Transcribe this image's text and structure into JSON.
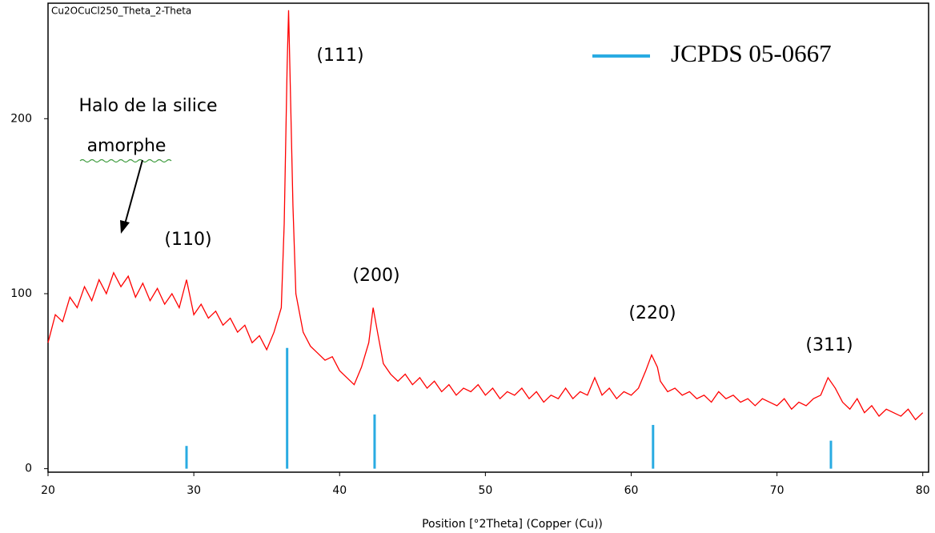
{
  "chart_data": {
    "type": "line",
    "title": "Cu2OCuCl250_Theta_2-Theta",
    "x_label": "Position [°2Theta] (Copper (Cu))",
    "xlim": [
      20,
      80.4
    ],
    "ylim": [
      -2,
      266
    ],
    "xticks": [
      20,
      30,
      40,
      50,
      60,
      70,
      80
    ],
    "yticks": [
      0,
      100,
      200
    ],
    "grid": false,
    "legend": "top-right",
    "annotations": [
      "(111)",
      "(110)",
      "(200)",
      "(220)",
      "(311)"
    ],
    "halo_label": [
      "Halo de la silice",
      "amorphe"
    ],
    "series": [
      {
        "color": "#ff0000",
        "style": "line",
        "x": [
          20,
          20.5,
          21,
          21.5,
          22,
          22.5,
          23,
          23.5,
          24,
          24.5,
          25,
          25.5,
          26,
          26.5,
          27,
          27.5,
          28,
          28.5,
          29,
          29.5,
          30,
          30.5,
          31,
          31.5,
          32,
          32.5,
          33,
          33.5,
          34,
          34.5,
          35,
          35.5,
          36,
          36.2,
          36.4,
          36.5,
          36.6,
          36.8,
          37,
          37.5,
          38,
          38.5,
          39,
          39.5,
          40,
          40.5,
          41,
          41.5,
          42,
          42.3,
          42.6,
          43,
          43.5,
          44,
          44.5,
          45,
          45.5,
          46,
          46.5,
          47,
          47.5,
          48,
          48.5,
          49,
          49.5,
          50,
          50.5,
          51,
          51.5,
          52,
          52.5,
          53,
          53.5,
          54,
          54.5,
          55,
          55.5,
          56,
          56.5,
          57,
          57.5,
          58,
          58.5,
          59,
          59.5,
          60,
          60.5,
          61,
          61.4,
          61.8,
          62,
          62.5,
          63,
          63.5,
          64,
          64.5,
          65,
          65.5,
          66,
          66.5,
          67,
          67.5,
          68,
          68.5,
          69,
          69.5,
          70,
          70.5,
          71,
          71.5,
          72,
          72.5,
          73,
          73.5,
          74,
          74.5,
          75,
          75.5,
          76,
          76.5,
          77,
          77.5,
          78,
          78.5,
          79,
          79.5,
          80
        ],
        "values": [
          72,
          88,
          84,
          98,
          92,
          104,
          96,
          108,
          100,
          112,
          104,
          110,
          98,
          106,
          96,
          103,
          94,
          100,
          92,
          108,
          88,
          94,
          86,
          90,
          82,
          86,
          78,
          82,
          72,
          76,
          68,
          78,
          92,
          140,
          230,
          262,
          225,
          150,
          100,
          78,
          70,
          66,
          62,
          64,
          56,
          52,
          48,
          58,
          72,
          92,
          78,
          60,
          54,
          50,
          54,
          48,
          52,
          46,
          50,
          44,
          48,
          42,
          46,
          44,
          48,
          42,
          46,
          40,
          44,
          42,
          46,
          40,
          44,
          38,
          42,
          40,
          46,
          40,
          44,
          42,
          52,
          42,
          46,
          40,
          44,
          42,
          46,
          56,
          65,
          58,
          50,
          44,
          46,
          42,
          44,
          40,
          42,
          38,
          44,
          40,
          42,
          38,
          40,
          36,
          40,
          38,
          36,
          40,
          34,
          38,
          36,
          40,
          42,
          52,
          46,
          38,
          34,
          40,
          32,
          36,
          30,
          34,
          32,
          30,
          34,
          28,
          32
        ]
      },
      {
        "name": "JCPDS 05-0667",
        "color": "#29abe2",
        "style": "stick",
        "x": [
          29.5,
          36.4,
          42.4,
          61.5,
          73.7
        ],
        "values": [
          13,
          69,
          31,
          25,
          16
        ]
      }
    ]
  }
}
